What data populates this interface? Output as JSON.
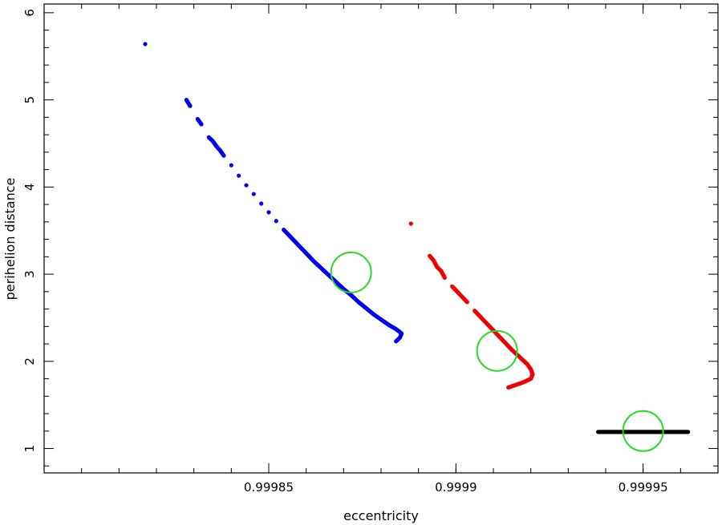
{
  "chart_data": {
    "type": "scatter",
    "title": "",
    "xlabel": "eccentricity",
    "ylabel": "perihelion distance",
    "xlim": [
      0.99979,
      0.99997
    ],
    "ylim": [
      0.72,
      6.1
    ],
    "xticks": [
      {
        "value": 0.99985,
        "label": "0.99985"
      },
      {
        "value": 0.9999,
        "label": "0.9999"
      },
      {
        "value": 0.99995,
        "label": "0.99995"
      }
    ],
    "x_minor_step": 1e-05,
    "yticks": [
      {
        "value": 1,
        "label": "1"
      },
      {
        "value": 2,
        "label": "2"
      },
      {
        "value": 3,
        "label": "3"
      },
      {
        "value": 4,
        "label": "4"
      },
      {
        "value": 5,
        "label": "5"
      },
      {
        "value": 6,
        "label": "6"
      }
    ],
    "grid": false,
    "series": [
      {
        "color": "#0000ee",
        "points": [
          [
            0.999817,
            5.64
          ],
          [
            0.999828,
            5.0
          ],
          [
            0.999829,
            4.93
          ],
          [
            0.999831,
            4.78
          ],
          [
            0.999832,
            4.72
          ],
          [
            0.999834,
            4.57
          ],
          [
            0.999835,
            4.53
          ],
          [
            0.999836,
            4.47
          ],
          [
            0.999837,
            4.42
          ],
          [
            0.999838,
            4.36
          ],
          [
            0.99984,
            4.25
          ],
          [
            0.999842,
            4.13
          ],
          [
            0.999844,
            4.02
          ],
          [
            0.999846,
            3.92
          ],
          [
            0.999848,
            3.81
          ],
          [
            0.99985,
            3.71
          ],
          [
            0.999852,
            3.61
          ],
          [
            0.999854,
            3.51
          ],
          [
            0.999856,
            3.42
          ],
          [
            0.999858,
            3.33
          ],
          [
            0.99986,
            3.24
          ],
          [
            0.999862,
            3.15
          ],
          [
            0.999864,
            3.07
          ],
          [
            0.999866,
            2.99
          ],
          [
            0.999868,
            2.91
          ],
          [
            0.99987,
            2.83
          ],
          [
            0.999872,
            2.76
          ],
          [
            0.999874,
            2.68
          ],
          [
            0.999876,
            2.61
          ],
          [
            0.999878,
            2.54
          ],
          [
            0.99988,
            2.48
          ],
          [
            0.999882,
            2.42
          ],
          [
            0.999884,
            2.37
          ],
          [
            0.9998855,
            2.32
          ],
          [
            0.999885,
            2.27
          ],
          [
            0.999884,
            2.23
          ]
        ]
      },
      {
        "color": "#ee0000",
        "points": [
          [
            0.999888,
            3.58
          ],
          [
            0.999893,
            3.21
          ],
          [
            0.999894,
            3.16
          ],
          [
            0.999895,
            3.08
          ],
          [
            0.999896,
            3.04
          ],
          [
            0.999897,
            2.96
          ],
          [
            0.999899,
            2.86
          ],
          [
            0.999901,
            2.77
          ],
          [
            0.999903,
            2.68
          ],
          [
            0.999905,
            2.58
          ],
          [
            0.999907,
            2.49
          ],
          [
            0.999909,
            2.4
          ],
          [
            0.999911,
            2.31
          ],
          [
            0.999913,
            2.22
          ],
          [
            0.999915,
            2.13
          ],
          [
            0.999917,
            2.05
          ],
          [
            0.999919,
            1.97
          ],
          [
            0.99992,
            1.91
          ],
          [
            0.9999205,
            1.85
          ],
          [
            0.99992,
            1.8
          ],
          [
            0.999918,
            1.76
          ],
          [
            0.999916,
            1.73
          ],
          [
            0.999914,
            1.7
          ]
        ]
      },
      {
        "color": "#000000",
        "points": [
          [
            0.999938,
            1.19
          ],
          [
            0.99994,
            1.19
          ],
          [
            0.999942,
            1.19
          ],
          [
            0.999944,
            1.19
          ],
          [
            0.999946,
            1.19
          ],
          [
            0.999948,
            1.19
          ],
          [
            0.99995,
            1.19
          ],
          [
            0.999952,
            1.19
          ],
          [
            0.999954,
            1.19
          ],
          [
            0.999956,
            1.19
          ],
          [
            0.999958,
            1.19
          ],
          [
            0.99996,
            1.19
          ],
          [
            0.999962,
            1.19
          ]
        ]
      }
    ],
    "annotations": [
      {
        "shape": "circle",
        "color": "#22dd22",
        "x": 0.999872,
        "y": 3.02
      },
      {
        "shape": "circle",
        "color": "#22dd22",
        "x": 0.999911,
        "y": 2.12
      },
      {
        "shape": "circle",
        "color": "#22dd22",
        "x": 0.99995,
        "y": 1.2
      }
    ]
  }
}
